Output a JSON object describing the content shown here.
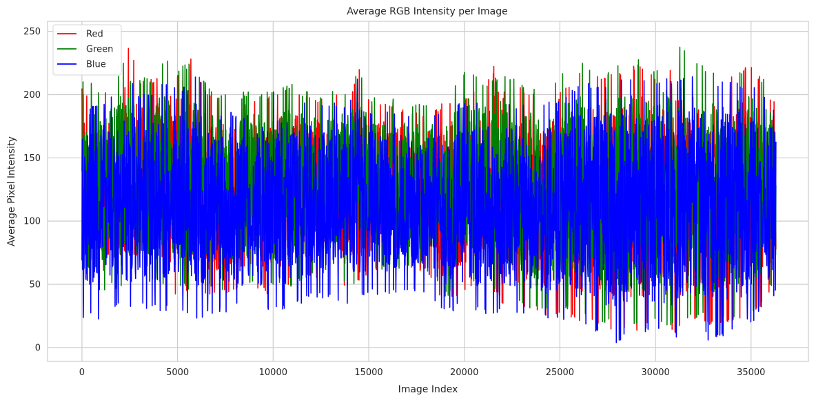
{
  "chart_data": {
    "type": "line",
    "title": "Average RGB Intensity per Image",
    "xlabel": "Image Index",
    "ylabel": "Average Pixel Intensity",
    "xlim": [
      -1800,
      38000
    ],
    "ylim": [
      -11,
      258
    ],
    "x_ticks": [
      0,
      5000,
      10000,
      15000,
      20000,
      25000,
      30000,
      35000
    ],
    "y_ticks": [
      0,
      50,
      100,
      150,
      200,
      250
    ],
    "grid": true,
    "legend_position": "top-left",
    "n_points": 36300,
    "series": [
      {
        "name": "Red",
        "color": "#ff0000",
        "envelope": {
          "x": [
            0,
            1000,
            2000,
            2500,
            3000,
            4000,
            4300,
            5000,
            5700,
            6000,
            7000,
            8000,
            9000,
            10000,
            11000,
            12000,
            13000,
            14000,
            14500,
            15000,
            16000,
            17000,
            18000,
            19000,
            20000,
            21000,
            22000,
            23000,
            24000,
            25000,
            26000,
            27000,
            28000,
            29000,
            30000,
            31000,
            32000,
            32300,
            33000,
            34000,
            35000,
            36300
          ],
          "high": [
            205,
            200,
            215,
            244,
            210,
            215,
            228,
            218,
            230,
            213,
            198,
            195,
            196,
            198,
            210,
            198,
            202,
            200,
            222,
            197,
            196,
            190,
            188,
            195,
            200,
            208,
            235,
            205,
            203,
            202,
            218,
            215,
            218,
            225,
            215,
            224,
            220,
            223,
            218,
            215,
            224,
            195
          ],
          "low": [
            30,
            40,
            45,
            48,
            50,
            50,
            45,
            40,
            42,
            45,
            40,
            43,
            47,
            40,
            45,
            55,
            55,
            42,
            50,
            55,
            58,
            60,
            60,
            33,
            45,
            50,
            35,
            28,
            25,
            25,
            20,
            15,
            10,
            12,
            18,
            10,
            18,
            20,
            15,
            20,
            22,
            50
          ]
        }
      },
      {
        "name": "Green",
        "color": "#008000",
        "envelope": {
          "x": [
            0,
            1000,
            2000,
            2500,
            3000,
            4000,
            4300,
            5000,
            5700,
            6000,
            7000,
            8000,
            9000,
            10000,
            11000,
            12000,
            13000,
            14000,
            14500,
            15000,
            16000,
            17000,
            18000,
            19000,
            20000,
            21000,
            22000,
            23000,
            24000,
            25000,
            26000,
            27000,
            28000,
            29000,
            30000,
            31000,
            32000,
            32300,
            33000,
            34000,
            35000,
            36300
          ],
          "high": [
            215,
            205,
            220,
            244,
            212,
            218,
            228,
            222,
            225,
            218,
            202,
            200,
            205,
            202,
            210,
            200,
            205,
            203,
            222,
            200,
            200,
            196,
            195,
            197,
            222,
            210,
            218,
            210,
            205,
            215,
            226,
            220,
            225,
            232,
            220,
            246,
            226,
            224,
            222,
            218,
            226,
            200
          ],
          "low": [
            35,
            42,
            48,
            50,
            52,
            52,
            48,
            45,
            45,
            48,
            45,
            47,
            50,
            45,
            48,
            58,
            58,
            48,
            52,
            58,
            60,
            62,
            62,
            40,
            48,
            52,
            40,
            32,
            30,
            30,
            25,
            20,
            14,
            16,
            22,
            14,
            22,
            24,
            18,
            24,
            25,
            55
          ]
        }
      },
      {
        "name": "Blue",
        "color": "#0000ff",
        "envelope": {
          "x": [
            0,
            1000,
            2000,
            2500,
            3000,
            4000,
            4300,
            5000,
            5700,
            6000,
            7000,
            8000,
            9000,
            10000,
            11000,
            12000,
            13000,
            14000,
            14500,
            15000,
            16000,
            17000,
            18000,
            19000,
            20000,
            21000,
            22000,
            23000,
            24000,
            25000,
            26000,
            27000,
            28000,
            29000,
            30000,
            31000,
            32000,
            32300,
            33000,
            34000,
            35000,
            36300
          ],
          "high": [
            190,
            195,
            205,
            215,
            200,
            205,
            210,
            205,
            210,
            218,
            190,
            185,
            188,
            205,
            202,
            195,
            196,
            195,
            222,
            190,
            190,
            187,
            184,
            190,
            195,
            196,
            200,
            192,
            196,
            195,
            212,
            210,
            212,
            218,
            212,
            215,
            215,
            215,
            212,
            210,
            212,
            190
          ],
          "low": [
            24,
            20,
            32,
            28,
            30,
            28,
            30,
            24,
            28,
            22,
            26,
            30,
            25,
            30,
            28,
            40,
            38,
            32,
            35,
            40,
            42,
            45,
            40,
            28,
            30,
            26,
            25,
            28,
            20,
            22,
            15,
            10,
            3,
            8,
            12,
            6,
            10,
            12,
            2,
            12,
            18,
            40
          ]
        }
      }
    ]
  }
}
